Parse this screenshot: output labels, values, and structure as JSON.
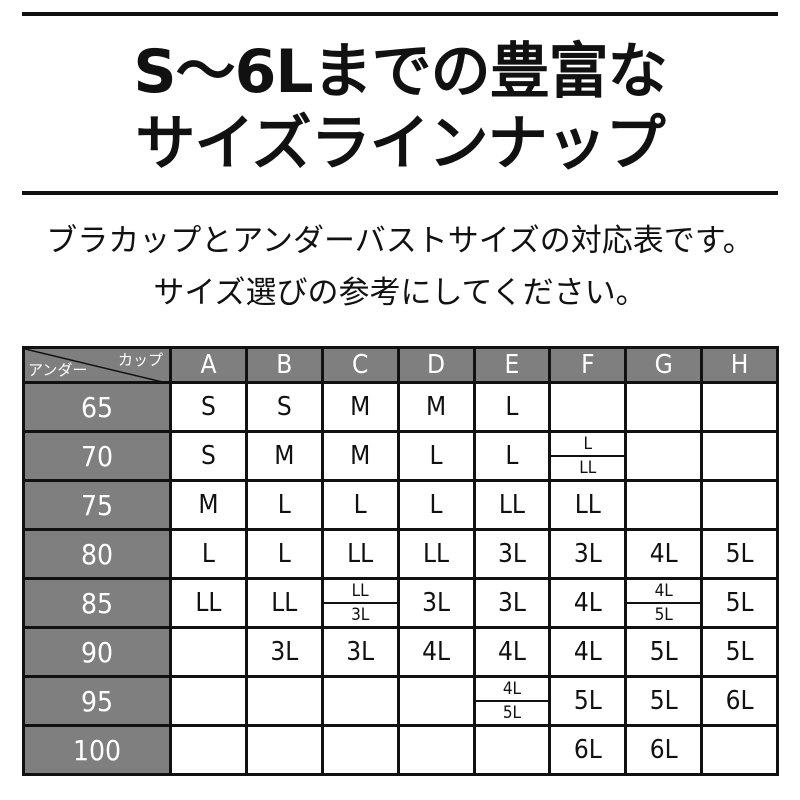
{
  "title": {
    "line1": "S～6Lまでの豊富な",
    "line2": "サイズラインナップ"
  },
  "subtitle": {
    "line1": "ブラカップとアンダーバストサイズの対応表です。",
    "line2": "サイズ選びの参考にしてください。"
  },
  "table": {
    "corner_cup": "カップ",
    "corner_under": "アンダー",
    "cups": [
      "A",
      "B",
      "C",
      "D",
      "E",
      "F",
      "G",
      "H"
    ],
    "rows": [
      {
        "under": "65",
        "cells": [
          "S",
          "S",
          "M",
          "M",
          "L",
          "",
          "",
          ""
        ]
      },
      {
        "under": "70",
        "cells": [
          "S",
          "M",
          "M",
          "L",
          "L",
          [
            "L",
            "LL"
          ],
          "",
          ""
        ]
      },
      {
        "under": "75",
        "cells": [
          "M",
          "L",
          "L",
          "L",
          "LL",
          "LL",
          "",
          ""
        ]
      },
      {
        "under": "80",
        "cells": [
          "L",
          "L",
          "LL",
          "LL",
          "3L",
          "3L",
          "4L",
          "5L"
        ]
      },
      {
        "under": "85",
        "cells": [
          "LL",
          "LL",
          [
            "LL",
            "3L"
          ],
          "3L",
          "3L",
          "4L",
          [
            "4L",
            "5L"
          ],
          "5L"
        ]
      },
      {
        "under": "90",
        "cells": [
          "",
          "3L",
          "3L",
          "4L",
          "4L",
          "4L",
          "5L",
          "5L"
        ]
      },
      {
        "under": "95",
        "cells": [
          "",
          "",
          "",
          "",
          [
            "4L",
            "5L"
          ],
          "5L",
          "5L",
          "6L"
        ]
      },
      {
        "under": "100",
        "cells": [
          "",
          "",
          "",
          "",
          "",
          "6L",
          "6L",
          ""
        ]
      }
    ]
  },
  "colors": {
    "header_bg": "#7f7f7f",
    "border": "#111111"
  }
}
